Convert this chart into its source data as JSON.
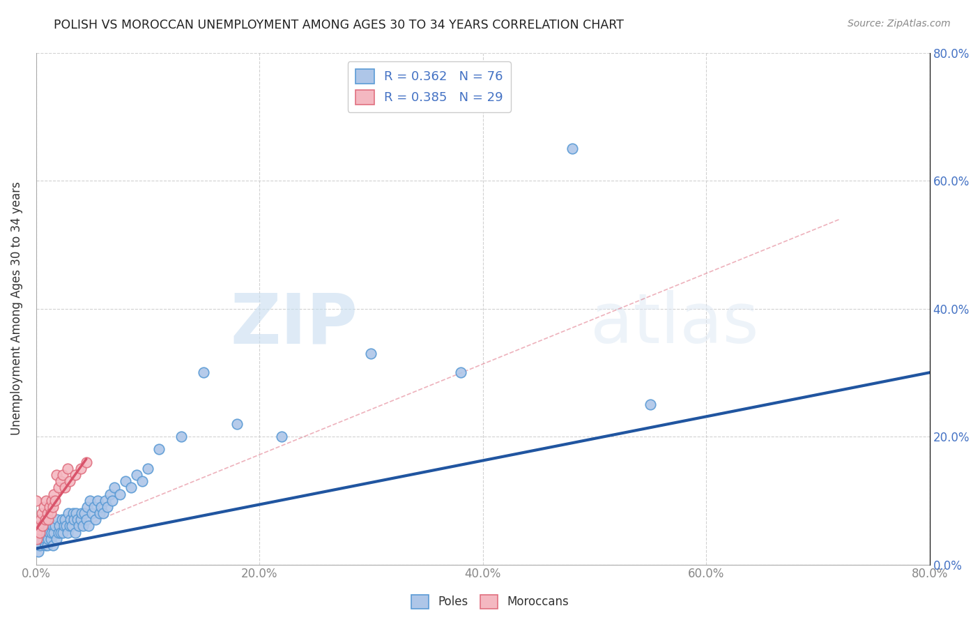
{
  "title": "POLISH VS MOROCCAN UNEMPLOYMENT AMONG AGES 30 TO 34 YEARS CORRELATION CHART",
  "source": "Source: ZipAtlas.com",
  "ylabel": "Unemployment Among Ages 30 to 34 years",
  "xlim": [
    0.0,
    0.8
  ],
  "ylim": [
    0.0,
    0.8
  ],
  "xticks": [
    0.0,
    0.2,
    0.4,
    0.6,
    0.8
  ],
  "yticks": [
    0.0,
    0.2,
    0.4,
    0.6,
    0.8
  ],
  "xtick_labels": [
    "0.0%",
    "20.0%",
    "40.0%",
    "60.0%",
    "80.0%"
  ],
  "ytick_labels": [
    "0.0%",
    "20.0%",
    "40.0%",
    "60.0%",
    "80.0%"
  ],
  "poles_color": "#aec6e8",
  "poles_edge_color": "#5b9bd5",
  "moroccan_color": "#f4b8c1",
  "moroccan_edge_color": "#e07080",
  "poles_line_color": "#2055a0",
  "moroccan_line_color": "#d9536a",
  "poles_R": 0.362,
  "poles_N": 76,
  "moroccan_R": 0.385,
  "moroccan_N": 29,
  "grid_color": "#cccccc",
  "background_color": "#ffffff",
  "watermark_zip": "ZIP",
  "watermark_atlas": "atlas",
  "legend_poles_label": "Poles",
  "legend_moroccan_label": "Moroccans",
  "poles_scatter_x": [
    0.0,
    0.0,
    0.002,
    0.003,
    0.004,
    0.005,
    0.006,
    0.007,
    0.008,
    0.009,
    0.01,
    0.01,
    0.011,
    0.012,
    0.013,
    0.014,
    0.015,
    0.015,
    0.016,
    0.017,
    0.018,
    0.019,
    0.02,
    0.021,
    0.022,
    0.023,
    0.024,
    0.025,
    0.026,
    0.027,
    0.028,
    0.029,
    0.03,
    0.031,
    0.032,
    0.033,
    0.034,
    0.035,
    0.036,
    0.037,
    0.038,
    0.04,
    0.041,
    0.042,
    0.043,
    0.045,
    0.046,
    0.047,
    0.048,
    0.05,
    0.052,
    0.053,
    0.055,
    0.057,
    0.058,
    0.06,
    0.062,
    0.064,
    0.066,
    0.068,
    0.07,
    0.075,
    0.08,
    0.085,
    0.09,
    0.095,
    0.1,
    0.11,
    0.13,
    0.15,
    0.18,
    0.22,
    0.3,
    0.38,
    0.48,
    0.55
  ],
  "poles_scatter_y": [
    0.03,
    0.05,
    0.02,
    0.03,
    0.04,
    0.05,
    0.04,
    0.06,
    0.03,
    0.04,
    0.03,
    0.06,
    0.04,
    0.05,
    0.04,
    0.05,
    0.03,
    0.06,
    0.05,
    0.06,
    0.04,
    0.07,
    0.05,
    0.06,
    0.05,
    0.07,
    0.05,
    0.06,
    0.07,
    0.06,
    0.05,
    0.08,
    0.06,
    0.07,
    0.06,
    0.08,
    0.07,
    0.05,
    0.08,
    0.07,
    0.06,
    0.07,
    0.08,
    0.06,
    0.08,
    0.07,
    0.09,
    0.06,
    0.1,
    0.08,
    0.09,
    0.07,
    0.1,
    0.08,
    0.09,
    0.08,
    0.1,
    0.09,
    0.11,
    0.1,
    0.12,
    0.11,
    0.13,
    0.12,
    0.14,
    0.13,
    0.15,
    0.18,
    0.2,
    0.3,
    0.22,
    0.2,
    0.33,
    0.3,
    0.65,
    0.25
  ],
  "moroccan_scatter_x": [
    0.0,
    0.0,
    0.001,
    0.002,
    0.003,
    0.004,
    0.005,
    0.006,
    0.007,
    0.008,
    0.009,
    0.01,
    0.011,
    0.012,
    0.013,
    0.014,
    0.015,
    0.016,
    0.017,
    0.018,
    0.02,
    0.022,
    0.024,
    0.026,
    0.028,
    0.03,
    0.035,
    0.04,
    0.045
  ],
  "moroccan_scatter_y": [
    0.05,
    0.1,
    0.04,
    0.06,
    0.05,
    0.07,
    0.08,
    0.06,
    0.09,
    0.07,
    0.1,
    0.08,
    0.07,
    0.09,
    0.08,
    0.1,
    0.09,
    0.11,
    0.1,
    0.14,
    0.12,
    0.13,
    0.14,
    0.12,
    0.15,
    0.13,
    0.14,
    0.15,
    0.16
  ],
  "poles_line_x": [
    0.0,
    0.8
  ],
  "poles_line_y": [
    0.025,
    0.3
  ],
  "moroccan_line_x": [
    0.0,
    0.045
  ],
  "moroccan_line_y": [
    0.055,
    0.165
  ],
  "moroccan_dashed_line_x": [
    0.0,
    0.72
  ],
  "moroccan_dashed_line_y": [
    0.03,
    0.54
  ]
}
